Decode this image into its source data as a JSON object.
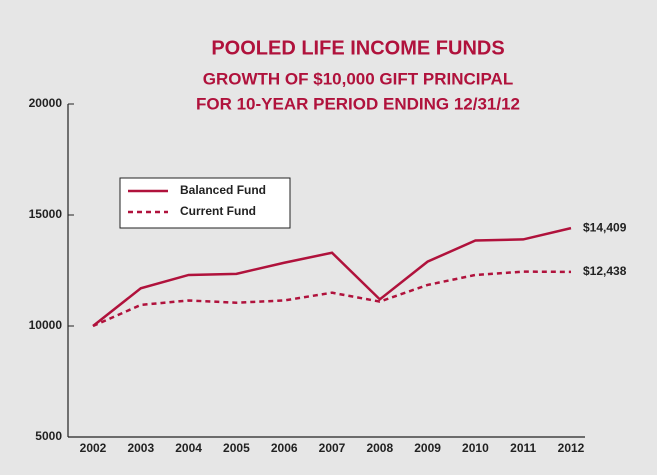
{
  "chart_data": {
    "type": "line",
    "title": "POOLED LIFE INCOME FUNDS",
    "subtitle": [
      "GROWTH OF $10,000 GIFT PRINCIPAL",
      "FOR 10-YEAR PERIOD ENDING 12/31/12"
    ],
    "categories": [
      "2002",
      "2003",
      "2004",
      "2005",
      "2006",
      "2007",
      "2008",
      "2009",
      "2010",
      "2011",
      "2012"
    ],
    "series": [
      {
        "name": "Balanced Fund",
        "color": "#b0123c",
        "line_style": "solid",
        "values": [
          10000,
          11700,
          12300,
          12350,
          12850,
          13300,
          11200,
          12900,
          13850,
          13900,
          14409
        ],
        "value_labels": [
          null,
          null,
          null,
          null,
          null,
          null,
          null,
          null,
          null,
          null,
          "$14,409"
        ]
      },
      {
        "name": "Current Fund",
        "color": "#b0123c",
        "line_style": "dashed",
        "values": [
          10000,
          10950,
          11150,
          11050,
          11150,
          11500,
          11100,
          11850,
          12300,
          12450,
          12438
        ],
        "value_labels": [
          null,
          null,
          null,
          null,
          null,
          null,
          null,
          null,
          null,
          null,
          "$12,438"
        ]
      }
    ],
    "ylim": [
      5000,
      20000
    ],
    "yticks": [
      5000,
      10000,
      15000,
      20000
    ],
    "grid": false
  }
}
